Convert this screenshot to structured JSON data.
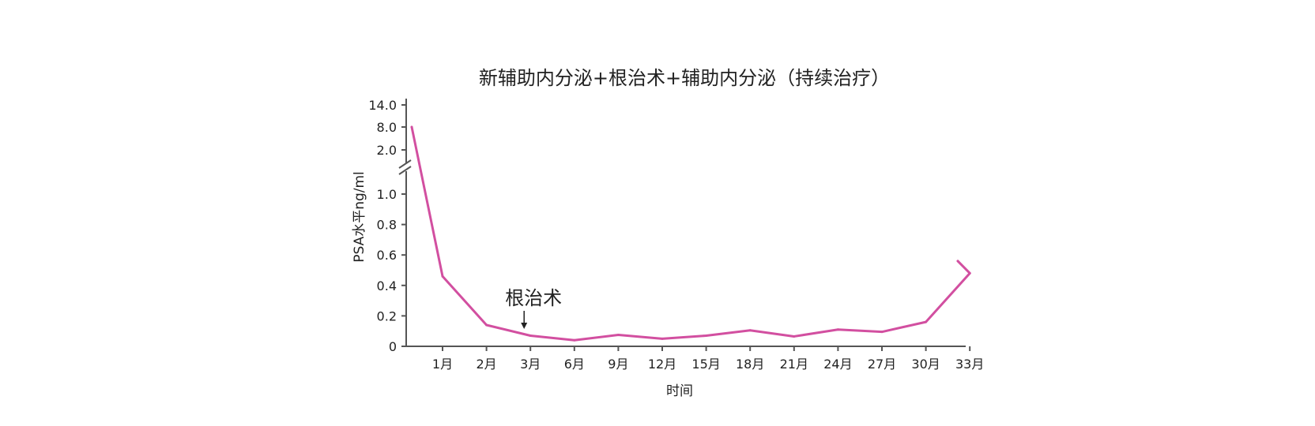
{
  "chart_data": {
    "type": "line",
    "title": "新辅助内分泌+根治术+辅助内分泌（持续治疗）",
    "xlabel": "时间",
    "ylabel": "PSA水平ng/ml",
    "categories": [
      "1月",
      "2月",
      "3月",
      "6月",
      "9月",
      "12月",
      "15月",
      "18月",
      "21月",
      "24月",
      "27月",
      "30月",
      "33月"
    ],
    "y_ticks_lower": [
      "0",
      "0.2",
      "0.4",
      "0.6",
      "0.8",
      "1.0"
    ],
    "y_ticks_upper": [
      "2.0",
      "8.0",
      "14.0"
    ],
    "axis_break": true,
    "ylim_lower": [
      0,
      1.1
    ],
    "series": [
      {
        "color": "#d24fa0",
        "points": [
          {
            "x": "start",
            "y": 8.0
          },
          {
            "x": "1月",
            "y": 0.46
          },
          {
            "x": "2月",
            "y": 0.14
          },
          {
            "x": "3月",
            "y": 0.07
          },
          {
            "x": "6月",
            "y": 0.04
          },
          {
            "x": "9月",
            "y": 0.075
          },
          {
            "x": "12月",
            "y": 0.05
          },
          {
            "x": "15月",
            "y": 0.07
          },
          {
            "x": "18月",
            "y": 0.105
          },
          {
            "x": "21月",
            "y": 0.065
          },
          {
            "x": "24月",
            "y": 0.11
          },
          {
            "x": "27月",
            "y": 0.095
          },
          {
            "x": "30月",
            "y": 0.16
          },
          {
            "x": "33月",
            "y": 0.48
          },
          {
            "x": "end",
            "y": 0.56
          }
        ]
      }
    ],
    "annotations": [
      {
        "text": "根治术",
        "at": "3月",
        "arrow": true
      }
    ]
  }
}
